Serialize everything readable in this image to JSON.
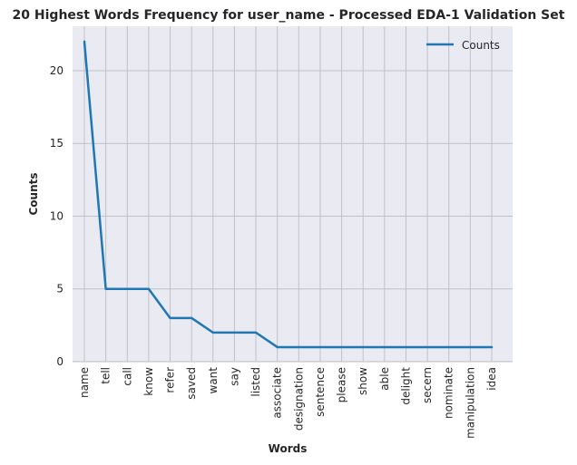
{
  "chart_data": {
    "type": "line",
    "title": "20 Highest Words Frequency for user_name - Processed EDA-1 Validation Set",
    "xlabel": "Words",
    "ylabel": "Counts",
    "categories": [
      "name",
      "tell",
      "call",
      "know",
      "refer",
      "saved",
      "want",
      "say",
      "listed",
      "associate",
      "designation",
      "sentence",
      "please",
      "show",
      "able",
      "delight",
      "secern",
      "nominate",
      "manipulation",
      "idea"
    ],
    "series": [
      {
        "name": "Counts",
        "values": [
          22,
          5,
          5,
          5,
          3,
          3,
          2,
          2,
          2,
          1,
          1,
          1,
          1,
          1,
          1,
          1,
          1,
          1,
          1,
          1
        ]
      }
    ],
    "yticks": [
      0,
      5,
      10,
      15,
      20
    ],
    "ylim": [
      0,
      23.05
    ],
    "grid": true,
    "legend": "top-right",
    "colors": {
      "line": "#1f77b4",
      "plot_bg": "#eaeaf2",
      "grid": "#c0c0c8",
      "spine": "#bcbcbc"
    }
  }
}
